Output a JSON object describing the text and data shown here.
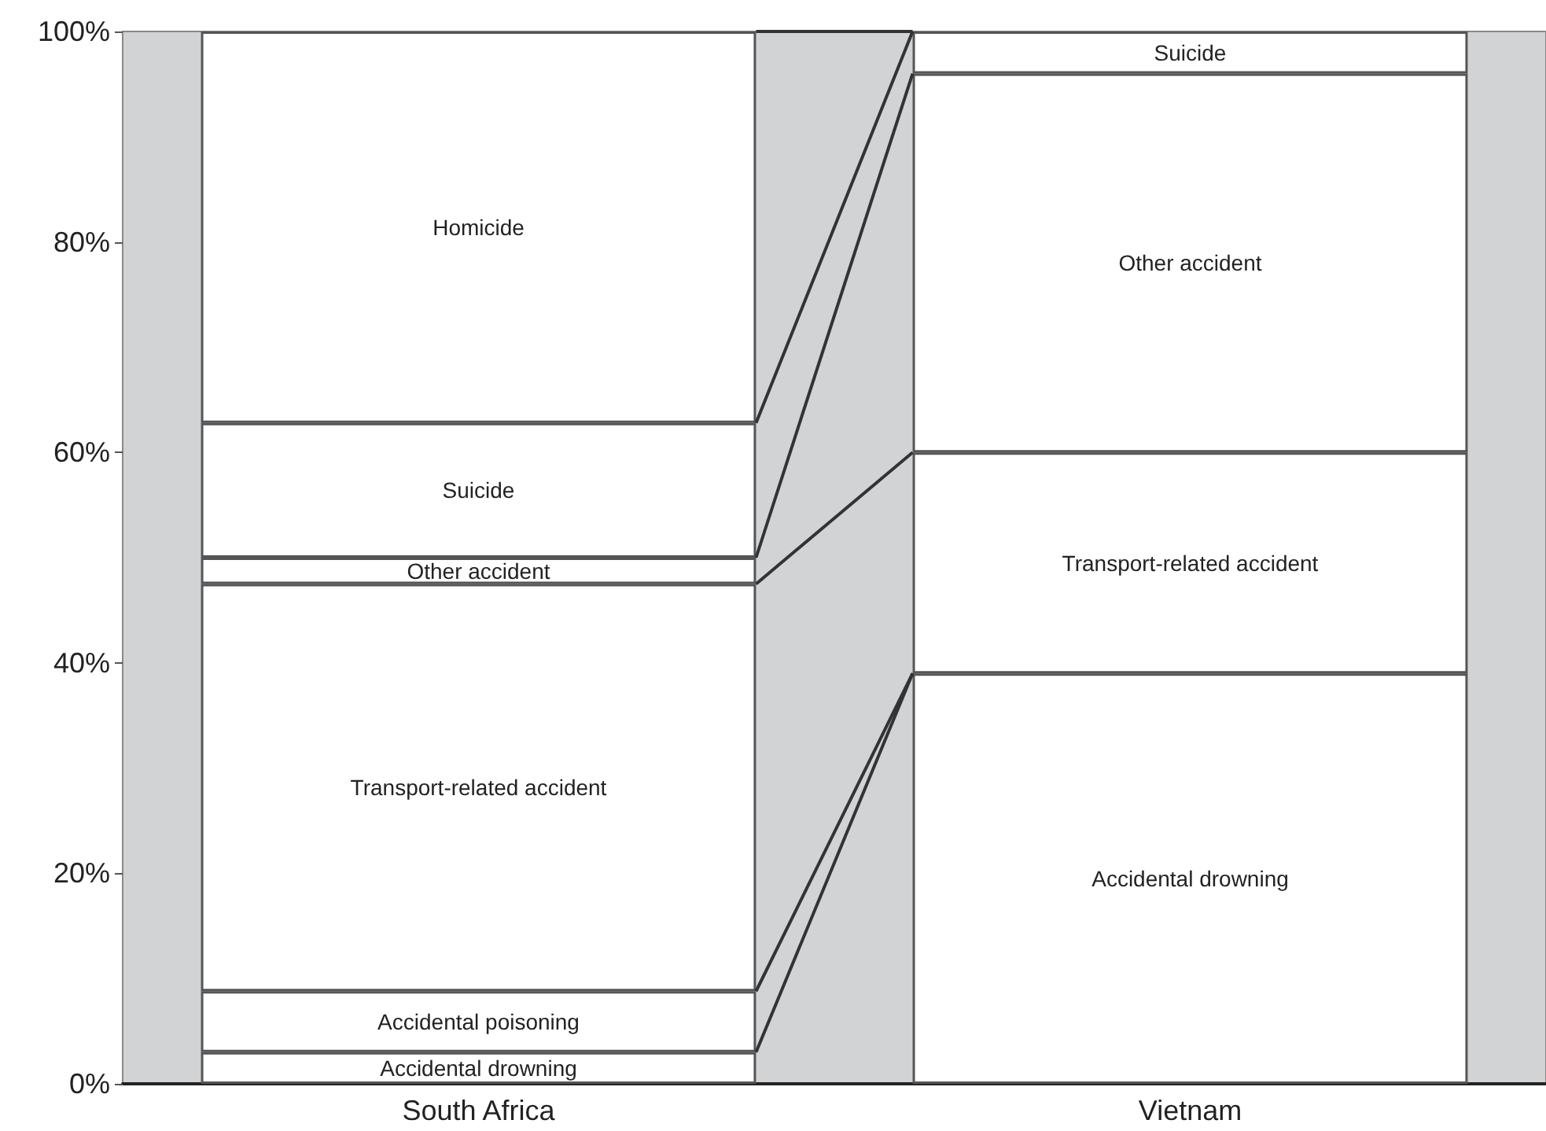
{
  "chart_data": {
    "type": "bar",
    "stacked": true,
    "categories": [
      "South Africa",
      "Vietnam"
    ],
    "series": [
      {
        "name": "Accidental drowning",
        "color": "#ffffff",
        "values": [
          3.0,
          39
        ]
      },
      {
        "name": "Accidental poisoning",
        "color": "#ffffff",
        "values": [
          5.8,
          0
        ]
      },
      {
        "name": "Transport-related accident",
        "color": "#ffffff",
        "values": [
          38.7,
          21
        ]
      },
      {
        "name": "Other accident",
        "color": "#ffffff",
        "values": [
          2.5,
          36
        ]
      },
      {
        "name": "Suicide",
        "color": "#ffffff",
        "values": [
          12.8,
          4
        ]
      },
      {
        "name": "Homicide",
        "color": "#ffffff",
        "values": [
          37.2,
          0
        ]
      }
    ],
    "ylim": [
      0,
      100
    ],
    "yticks": [
      {
        "value": 0,
        "label": "0%"
      },
      {
        "value": 20,
        "label": "20%"
      },
      {
        "value": 40,
        "label": "40%"
      },
      {
        "value": 60,
        "label": "60%"
      },
      {
        "value": 80,
        "label": "80%"
      },
      {
        "value": 100,
        "label": "100%"
      }
    ]
  }
}
